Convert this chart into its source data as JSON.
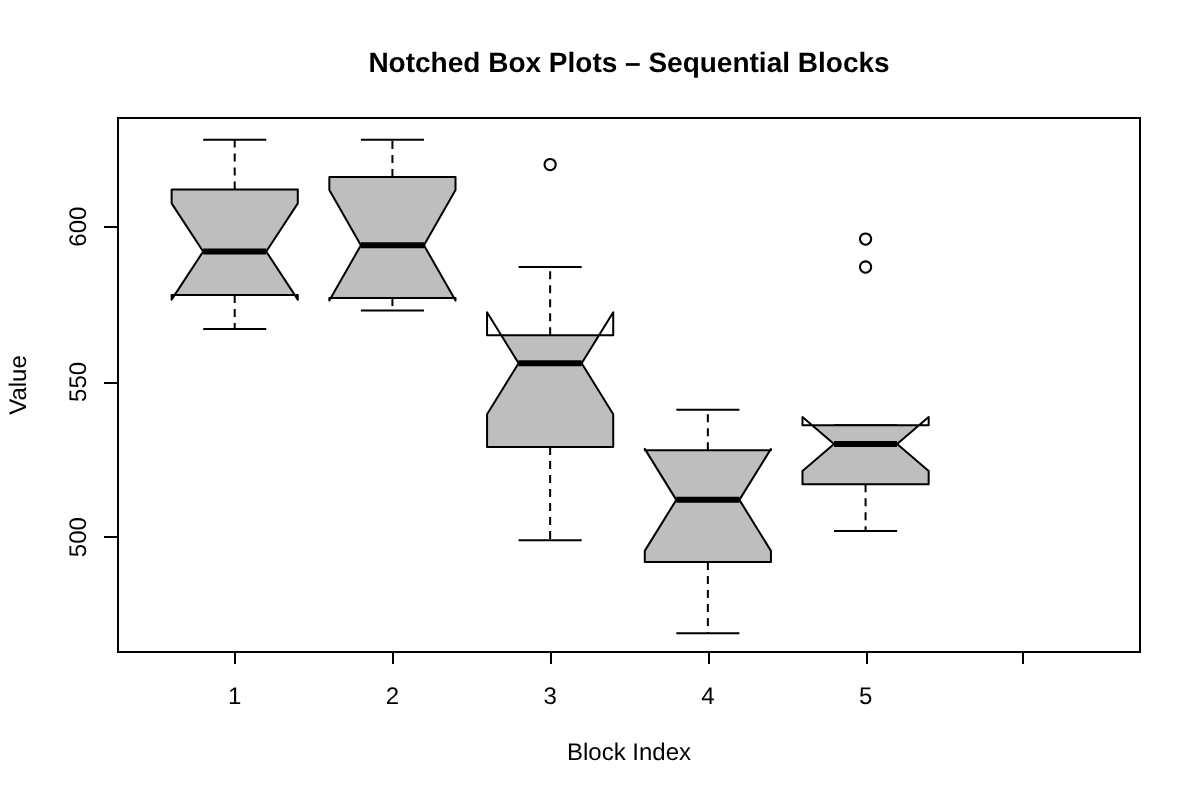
{
  "chart_data": {
    "type": "box",
    "title": "Notched Box Plots – Sequential Blocks",
    "xlabel": "Block Index",
    "ylabel": "Value",
    "categories": [
      "1",
      "2",
      "3",
      "4",
      "5",
      null
    ],
    "series": [
      {
        "color": "#bebebe",
        "boxes": [
          {
            "low": 567,
            "q1": 578,
            "median": 592,
            "q3": 612,
            "high": 628
          },
          {
            "low": 573,
            "q1": 577,
            "median": 594,
            "q3": 616,
            "high": 628
          },
          {
            "low": 499,
            "q1": 529,
            "median": 556,
            "q3": 565,
            "high": 587,
            "outliers": [
              620
            ]
          },
          {
            "low": 469,
            "q1": 492,
            "median": 512,
            "q3": 528,
            "high": 541
          },
          {
            "low": 502,
            "q1": 517,
            "median": 530,
            "q3": 536,
            "high": 536,
            "outliers": [
              596,
              587
            ]
          },
          null
        ]
      }
    ],
    "ylim": [
      463,
      635
    ],
    "yticks": [
      500,
      550,
      600
    ]
  }
}
